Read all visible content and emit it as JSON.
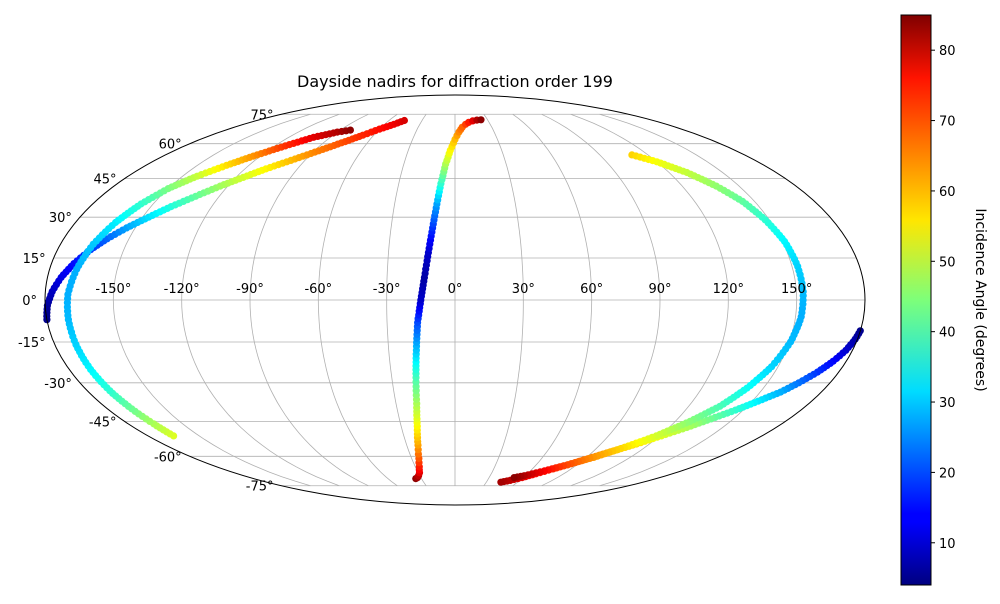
{
  "chart_data": {
    "type": "scatter",
    "projection": "mollweide",
    "title": "Dayside nadirs for diffraction order 199",
    "xlabel": "",
    "ylabel": "",
    "longitude_ticks": [
      "-150°",
      "-120°",
      "-90°",
      "-60°",
      "-30°",
      "0°",
      "30°",
      "60°",
      "90°",
      "120°",
      "150°"
    ],
    "latitude_ticks": [
      "75°",
      "60°",
      "45°",
      "30°",
      "15°",
      "0°",
      "-15°",
      "-30°",
      "-45°",
      "-60°",
      "-75°"
    ],
    "xlim": [
      -180,
      180
    ],
    "ylim": [
      -90,
      90
    ],
    "grid": true,
    "colorbar": {
      "label": "Incidence Angle (degrees)",
      "colormap": "jet",
      "range": [
        4,
        85
      ],
      "ticks": [
        "10",
        "20",
        "30",
        "40",
        "50",
        "60",
        "70",
        "80"
      ]
    },
    "tracks": [
      {
        "points": [
          [
            -35,
            -71,
            84
          ],
          [
            -33,
            -70.5,
            82
          ],
          [
            -31,
            -69.5,
            80
          ],
          [
            -29,
            -68,
            77
          ],
          [
            -27,
            -65,
            73
          ],
          [
            -25,
            -61,
            68
          ],
          [
            -23,
            -55,
            62
          ],
          [
            -21,
            -47,
            55
          ],
          [
            -19.5,
            -38,
            48
          ],
          [
            -18.5,
            -28,
            40
          ],
          [
            -17.5,
            -18,
            30
          ],
          [
            -16.5,
            -8,
            20
          ],
          [
            -15,
            0,
            10
          ],
          [
            -13.5,
            8,
            7
          ],
          [
            -12,
            17,
            10
          ],
          [
            -10.5,
            26,
            18
          ],
          [
            -9,
            35,
            27
          ],
          [
            -7.5,
            43,
            38
          ],
          [
            -5.5,
            51,
            48
          ],
          [
            -3,
            57,
            55
          ],
          [
            0,
            62,
            60
          ],
          [
            3,
            65.5,
            64
          ],
          [
            6,
            68,
            67
          ],
          [
            9,
            69.5,
            70
          ],
          [
            12,
            70.5,
            73
          ],
          [
            16,
            71.3,
            77
          ],
          [
            20,
            71.7,
            81
          ],
          [
            24,
            71.9,
            84
          ]
        ]
      },
      {
        "points": [
          [
            -180,
            -7,
            5
          ],
          [
            -179,
            -2,
            6
          ],
          [
            -177,
            3,
            9
          ],
          [
            -174,
            8,
            12
          ],
          [
            -170,
            13,
            15
          ],
          [
            -165,
            18,
            18
          ],
          [
            -160,
            22,
            22
          ],
          [
            -154,
            26,
            27
          ],
          [
            -147,
            30,
            32
          ],
          [
            -140,
            34,
            37
          ],
          [
            -132,
            38,
            42
          ],
          [
            -124,
            42,
            47
          ],
          [
            -116,
            45.5,
            51
          ],
          [
            -108,
            49,
            55
          ],
          [
            -100,
            52,
            59
          ],
          [
            -92,
            55,
            63
          ],
          [
            -84,
            58,
            66
          ],
          [
            -76,
            61,
            69
          ],
          [
            -68,
            64,
            72
          ],
          [
            -60,
            67,
            74
          ],
          [
            -52,
            69.5,
            76
          ],
          [
            -46,
            71.5,
            78
          ]
        ]
      },
      {
        "points": [
          [
            -165,
            -51,
            52
          ],
          [
            -166,
            -46,
            48
          ],
          [
            -167.5,
            -40,
            43
          ],
          [
            -169,
            -33,
            38
          ],
          [
            -170,
            -25,
            34
          ],
          [
            -170.5,
            -16,
            31
          ],
          [
            -170.5,
            -7,
            29
          ],
          [
            -170,
            2,
            28
          ],
          [
            -168,
            11,
            28
          ],
          [
            -165,
            20,
            30
          ],
          [
            -161,
            28,
            33
          ],
          [
            -156,
            35,
            38
          ],
          [
            -150,
            41,
            44
          ],
          [
            -142,
            46,
            50
          ],
          [
            -133,
            50.5,
            57
          ],
          [
            -123,
            55,
            64
          ],
          [
            -113,
            59,
            71
          ],
          [
            -102,
            63,
            77
          ],
          [
            -90,
            65.5,
            81
          ],
          [
            -82,
            66.5,
            84
          ]
        ]
      },
      {
        "points": [
          [
            180,
            -11,
            5
          ],
          [
            179,
            -14,
            7
          ],
          [
            177,
            -18,
            10
          ],
          [
            174,
            -22,
            14
          ],
          [
            170,
            -26,
            18
          ],
          [
            165,
            -30,
            23
          ],
          [
            160,
            -33.5,
            28
          ],
          [
            153,
            -37,
            33
          ],
          [
            146,
            -40.5,
            38
          ],
          [
            138,
            -44,
            43
          ],
          [
            130,
            -47.5,
            48
          ],
          [
            121,
            -51,
            52
          ],
          [
            112,
            -54.5,
            57
          ],
          [
            103,
            -57.5,
            61
          ],
          [
            94,
            -60.5,
            65
          ],
          [
            85,
            -63.5,
            68
          ],
          [
            76,
            -66,
            71
          ],
          [
            67,
            -68.5,
            74
          ],
          [
            59,
            -70.5,
            77
          ],
          [
            51,
            -72,
            80
          ],
          [
            44,
            -73,
            82
          ]
        ]
      },
      {
        "points": [
          [
            110,
            55,
            58
          ],
          [
            120,
            52,
            54
          ],
          [
            130,
            47.5,
            50
          ],
          [
            138,
            42,
            46
          ],
          [
            144,
            36,
            42
          ],
          [
            148,
            29,
            38
          ],
          [
            151,
            21,
            34
          ],
          [
            152.5,
            12,
            31
          ],
          [
            153,
            3,
            29
          ],
          [
            152.5,
            -6,
            28
          ],
          [
            150.5,
            -15,
            29
          ],
          [
            147,
            -24,
            31
          ],
          [
            142,
            -32,
            35
          ],
          [
            136,
            -39,
            40
          ],
          [
            128,
            -45,
            45
          ],
          [
            118,
            -51,
            51
          ],
          [
            107,
            -56,
            57
          ],
          [
            95,
            -60.5,
            63
          ],
          [
            83,
            -64,
            69
          ],
          [
            71,
            -67,
            75
          ],
          [
            59,
            -69.5,
            81
          ],
          [
            52,
            -70.5,
            84
          ]
        ]
      }
    ]
  }
}
